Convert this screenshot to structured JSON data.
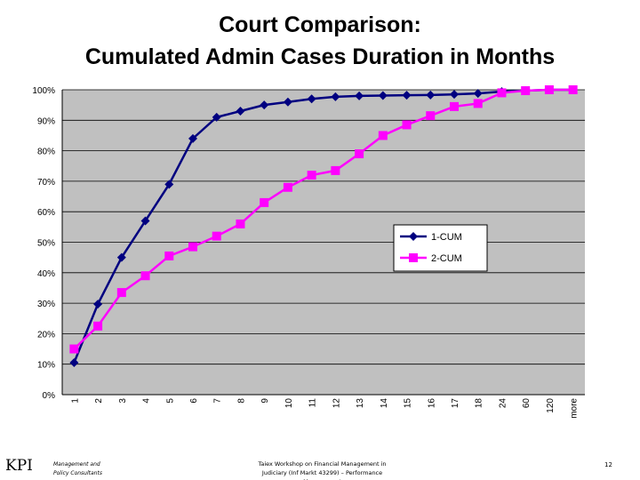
{
  "chart_data": {
    "type": "line",
    "title_lines": [
      "Court Comparison:",
      "Cumulated Admin Cases Duration in Months"
    ],
    "categories": [
      "1",
      "2",
      "3",
      "4",
      "5",
      "6",
      "7",
      "8",
      "9",
      "10",
      "11",
      "12",
      "13",
      "14",
      "15",
      "16",
      "17",
      "18",
      "24",
      "60",
      "120",
      "more"
    ],
    "series": [
      {
        "name": "1-CUM",
        "color": "#000080",
        "marker": "diamond",
        "values": [
          10.5,
          29.7,
          45,
          57,
          69,
          84,
          91,
          93,
          95,
          96,
          97,
          97.7,
          98,
          98.1,
          98.2,
          98.3,
          98.5,
          98.8,
          99.4,
          99.7,
          100,
          100
        ]
      },
      {
        "name": "2-CUM",
        "color": "#ff00ff",
        "marker": "square",
        "values": [
          15,
          22.5,
          33.5,
          39,
          45.5,
          48.5,
          52,
          56,
          63,
          68,
          72,
          73.5,
          79,
          85,
          88.5,
          91.5,
          94.5,
          95.5,
          99,
          99.7,
          100,
          100
        ]
      }
    ],
    "ylim": [
      0,
      100
    ],
    "yticks": [
      {
        "value": 0,
        "label": "0%"
      },
      {
        "value": 10,
        "label": "10%"
      },
      {
        "value": 20,
        "label": "20%"
      },
      {
        "value": 30,
        "label": "30%"
      },
      {
        "value": 40,
        "label": "40%"
      },
      {
        "value": 50,
        "label": "50%"
      },
      {
        "value": 60,
        "label": "60%"
      },
      {
        "value": 70,
        "label": "70%"
      },
      {
        "value": 80,
        "label": "80%"
      },
      {
        "value": 90,
        "label": "90%"
      },
      {
        "value": 100,
        "label": "100%"
      }
    ],
    "grid": true,
    "legend": "right"
  },
  "footer": {
    "logo": "KPI",
    "company": "Management and Policy Consultants",
    "center": "Taiex Workshop on Financial Management in Judiciary (Inf Markt 43299) – Performance Management",
    "page": "12"
  }
}
